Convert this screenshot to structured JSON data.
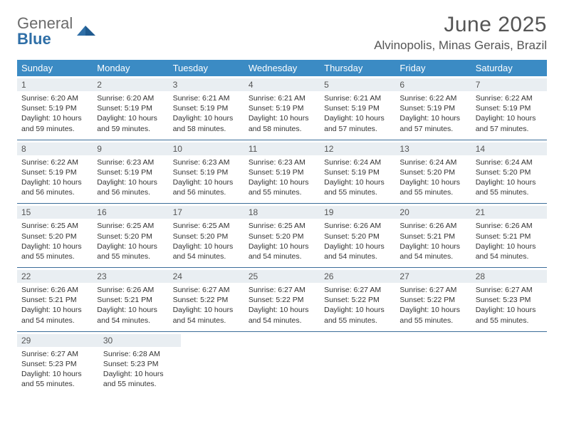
{
  "logo": {
    "word1": "General",
    "word2": "Blue"
  },
  "header": {
    "title": "June 2025",
    "location": "Alvinopolis, Minas Gerais, Brazil"
  },
  "colors": {
    "header_bg": "#3b8bc4",
    "row_border": "#3b6d99",
    "daynum_bg": "#e9eef2",
    "text": "#333333",
    "logo_gray": "#6b6b6b",
    "logo_blue": "#2f6fa7"
  },
  "calendar": {
    "columns": [
      "Sunday",
      "Monday",
      "Tuesday",
      "Wednesday",
      "Thursday",
      "Friday",
      "Saturday"
    ],
    "font_size_cell": 10.5,
    "days": [
      {
        "n": 1,
        "sunrise": "6:20 AM",
        "sunset": "5:19 PM",
        "daylight": "10 hours and 59 minutes."
      },
      {
        "n": 2,
        "sunrise": "6:20 AM",
        "sunset": "5:19 PM",
        "daylight": "10 hours and 59 minutes."
      },
      {
        "n": 3,
        "sunrise": "6:21 AM",
        "sunset": "5:19 PM",
        "daylight": "10 hours and 58 minutes."
      },
      {
        "n": 4,
        "sunrise": "6:21 AM",
        "sunset": "5:19 PM",
        "daylight": "10 hours and 58 minutes."
      },
      {
        "n": 5,
        "sunrise": "6:21 AM",
        "sunset": "5:19 PM",
        "daylight": "10 hours and 57 minutes."
      },
      {
        "n": 6,
        "sunrise": "6:22 AM",
        "sunset": "5:19 PM",
        "daylight": "10 hours and 57 minutes."
      },
      {
        "n": 7,
        "sunrise": "6:22 AM",
        "sunset": "5:19 PM",
        "daylight": "10 hours and 57 minutes."
      },
      {
        "n": 8,
        "sunrise": "6:22 AM",
        "sunset": "5:19 PM",
        "daylight": "10 hours and 56 minutes."
      },
      {
        "n": 9,
        "sunrise": "6:23 AM",
        "sunset": "5:19 PM",
        "daylight": "10 hours and 56 minutes."
      },
      {
        "n": 10,
        "sunrise": "6:23 AM",
        "sunset": "5:19 PM",
        "daylight": "10 hours and 56 minutes."
      },
      {
        "n": 11,
        "sunrise": "6:23 AM",
        "sunset": "5:19 PM",
        "daylight": "10 hours and 55 minutes."
      },
      {
        "n": 12,
        "sunrise": "6:24 AM",
        "sunset": "5:19 PM",
        "daylight": "10 hours and 55 minutes."
      },
      {
        "n": 13,
        "sunrise": "6:24 AM",
        "sunset": "5:20 PM",
        "daylight": "10 hours and 55 minutes."
      },
      {
        "n": 14,
        "sunrise": "6:24 AM",
        "sunset": "5:20 PM",
        "daylight": "10 hours and 55 minutes."
      },
      {
        "n": 15,
        "sunrise": "6:25 AM",
        "sunset": "5:20 PM",
        "daylight": "10 hours and 55 minutes."
      },
      {
        "n": 16,
        "sunrise": "6:25 AM",
        "sunset": "5:20 PM",
        "daylight": "10 hours and 55 minutes."
      },
      {
        "n": 17,
        "sunrise": "6:25 AM",
        "sunset": "5:20 PM",
        "daylight": "10 hours and 54 minutes."
      },
      {
        "n": 18,
        "sunrise": "6:25 AM",
        "sunset": "5:20 PM",
        "daylight": "10 hours and 54 minutes."
      },
      {
        "n": 19,
        "sunrise": "6:26 AM",
        "sunset": "5:20 PM",
        "daylight": "10 hours and 54 minutes."
      },
      {
        "n": 20,
        "sunrise": "6:26 AM",
        "sunset": "5:21 PM",
        "daylight": "10 hours and 54 minutes."
      },
      {
        "n": 21,
        "sunrise": "6:26 AM",
        "sunset": "5:21 PM",
        "daylight": "10 hours and 54 minutes."
      },
      {
        "n": 22,
        "sunrise": "6:26 AM",
        "sunset": "5:21 PM",
        "daylight": "10 hours and 54 minutes."
      },
      {
        "n": 23,
        "sunrise": "6:26 AM",
        "sunset": "5:21 PM",
        "daylight": "10 hours and 54 minutes."
      },
      {
        "n": 24,
        "sunrise": "6:27 AM",
        "sunset": "5:22 PM",
        "daylight": "10 hours and 54 minutes."
      },
      {
        "n": 25,
        "sunrise": "6:27 AM",
        "sunset": "5:22 PM",
        "daylight": "10 hours and 54 minutes."
      },
      {
        "n": 26,
        "sunrise": "6:27 AM",
        "sunset": "5:22 PM",
        "daylight": "10 hours and 55 minutes."
      },
      {
        "n": 27,
        "sunrise": "6:27 AM",
        "sunset": "5:22 PM",
        "daylight": "10 hours and 55 minutes."
      },
      {
        "n": 28,
        "sunrise": "6:27 AM",
        "sunset": "5:23 PM",
        "daylight": "10 hours and 55 minutes."
      },
      {
        "n": 29,
        "sunrise": "6:27 AM",
        "sunset": "5:23 PM",
        "daylight": "10 hours and 55 minutes."
      },
      {
        "n": 30,
        "sunrise": "6:28 AM",
        "sunset": "5:23 PM",
        "daylight": "10 hours and 55 minutes."
      }
    ],
    "labels": {
      "sunrise": "Sunrise:",
      "sunset": "Sunset:",
      "daylight": "Daylight:"
    },
    "start_weekday": 0,
    "trailing_blank": 5
  }
}
